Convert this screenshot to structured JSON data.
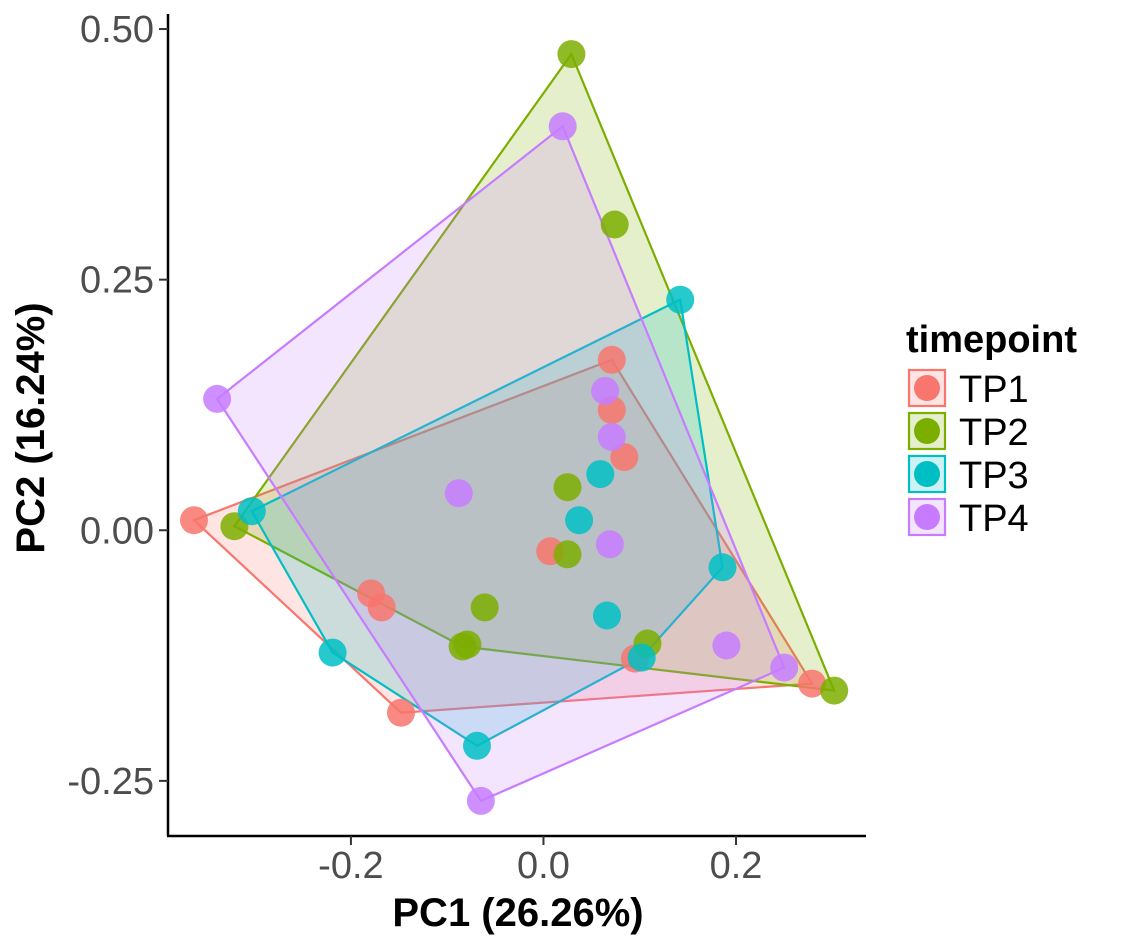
{
  "chart_data": {
    "type": "scatter",
    "xlabel": "PC1 (26.26%)",
    "ylabel": "PC2 (16.24%)",
    "xlim": [
      -0.39,
      0.335
    ],
    "ylim": [
      -0.305,
      0.515
    ],
    "x_ticks": [
      -0.2,
      0.0,
      0.2
    ],
    "x_tick_labels": [
      "-0.2",
      "0.0",
      "0.2"
    ],
    "y_ticks": [
      -0.25,
      0.0,
      0.25,
      0.5
    ],
    "y_tick_labels": [
      "-0.25",
      "0.00",
      "0.25",
      "0.50"
    ],
    "grid": false,
    "legend": {
      "title": "timepoint",
      "position": "right"
    },
    "hulls": true,
    "series": [
      {
        "name": "TP1",
        "color": "#F8766D",
        "points": [
          [
            -0.363,
            0.01
          ],
          [
            -0.148,
            -0.182
          ],
          [
            0.279,
            -0.153
          ],
          [
            0.071,
            0.17
          ],
          [
            -0.179,
            -0.063
          ],
          [
            -0.168,
            -0.077
          ],
          [
            0.007,
            -0.021
          ],
          [
            0.084,
            0.073
          ],
          [
            0.071,
            0.12
          ],
          [
            0.095,
            -0.128
          ]
        ]
      },
      {
        "name": "TP2",
        "color": "#7CAE00",
        "points": [
          [
            0.029,
            0.475
          ],
          [
            0.074,
            0.305
          ],
          [
            0.302,
            -0.16
          ],
          [
            -0.321,
            0.004
          ],
          [
            -0.084,
            -0.116
          ],
          [
            -0.079,
            -0.114
          ],
          [
            -0.061,
            -0.077
          ],
          [
            0.025,
            0.043
          ],
          [
            0.025,
            -0.024
          ],
          [
            0.108,
            -0.113
          ]
        ]
      },
      {
        "name": "TP3",
        "color": "#00BFC4",
        "points": [
          [
            0.142,
            0.23
          ],
          [
            -0.303,
            0.019
          ],
          [
            -0.219,
            -0.122
          ],
          [
            -0.069,
            -0.215
          ],
          [
            0.186,
            -0.037
          ],
          [
            0.059,
            0.056
          ],
          [
            0.037,
            0.01
          ],
          [
            0.066,
            -0.085
          ],
          [
            0.102,
            -0.127
          ]
        ]
      },
      {
        "name": "TP4",
        "color": "#C77CFF",
        "points": [
          [
            0.02,
            0.403
          ],
          [
            -0.339,
            0.131
          ],
          [
            -0.065,
            -0.27
          ],
          [
            0.25,
            -0.137
          ],
          [
            0.064,
            0.139
          ],
          [
            0.071,
            0.093
          ],
          [
            0.069,
            -0.014
          ],
          [
            -0.088,
            0.037
          ],
          [
            0.19,
            -0.115
          ]
        ]
      }
    ]
  }
}
